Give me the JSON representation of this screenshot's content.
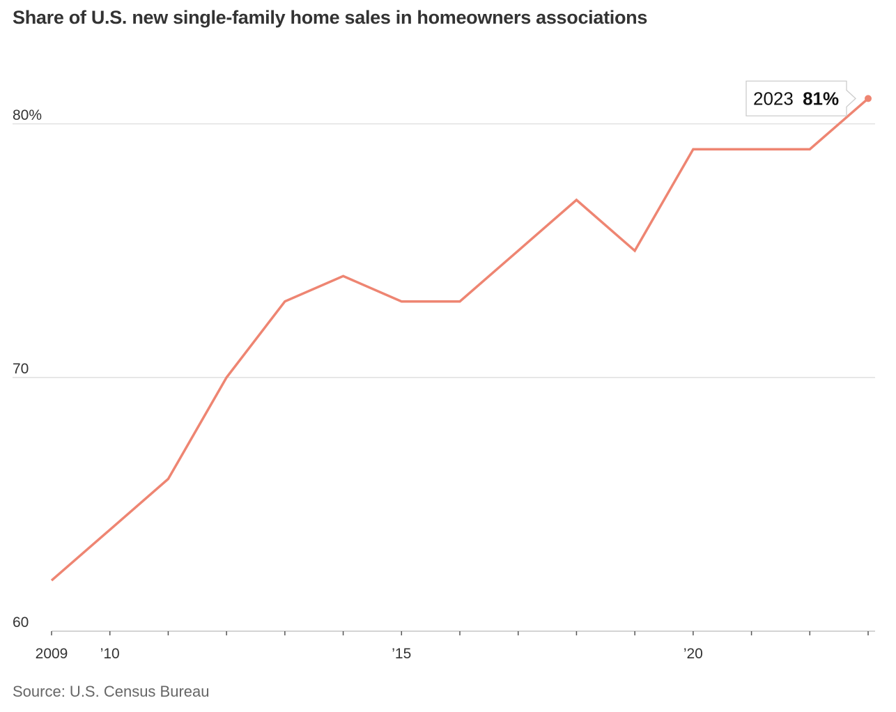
{
  "chart_data": {
    "type": "line",
    "title": "Share of U.S. new single-family home sales in homeowners associations",
    "source": "Source: U.S. Census Bureau",
    "x": [
      2009,
      2010,
      2011,
      2012,
      2013,
      2014,
      2015,
      2016,
      2017,
      2018,
      2019,
      2020,
      2021,
      2022,
      2023
    ],
    "series": [
      {
        "values": [
          62,
          64,
          66,
          70,
          73,
          74,
          73,
          73,
          75,
          77,
          75,
          79,
          79,
          79,
          81
        ]
      }
    ],
    "xlim": [
      2009,
      2023
    ],
    "ylim": [
      60,
      82
    ],
    "y_ticks": [
      {
        "value": 80,
        "label": "80%"
      },
      {
        "value": 70,
        "label": "70"
      },
      {
        "value": 60,
        "label": "60"
      }
    ],
    "x_tick_labels": [
      {
        "value": 2009,
        "label": "2009"
      },
      {
        "value": 2010,
        "label": "’10"
      },
      {
        "value": 2015,
        "label": "’15"
      },
      {
        "value": 2020,
        "label": "’20"
      }
    ],
    "annotation": {
      "year": "2023",
      "value": "81%"
    },
    "line_color": "#ee8572",
    "grid": true
  }
}
